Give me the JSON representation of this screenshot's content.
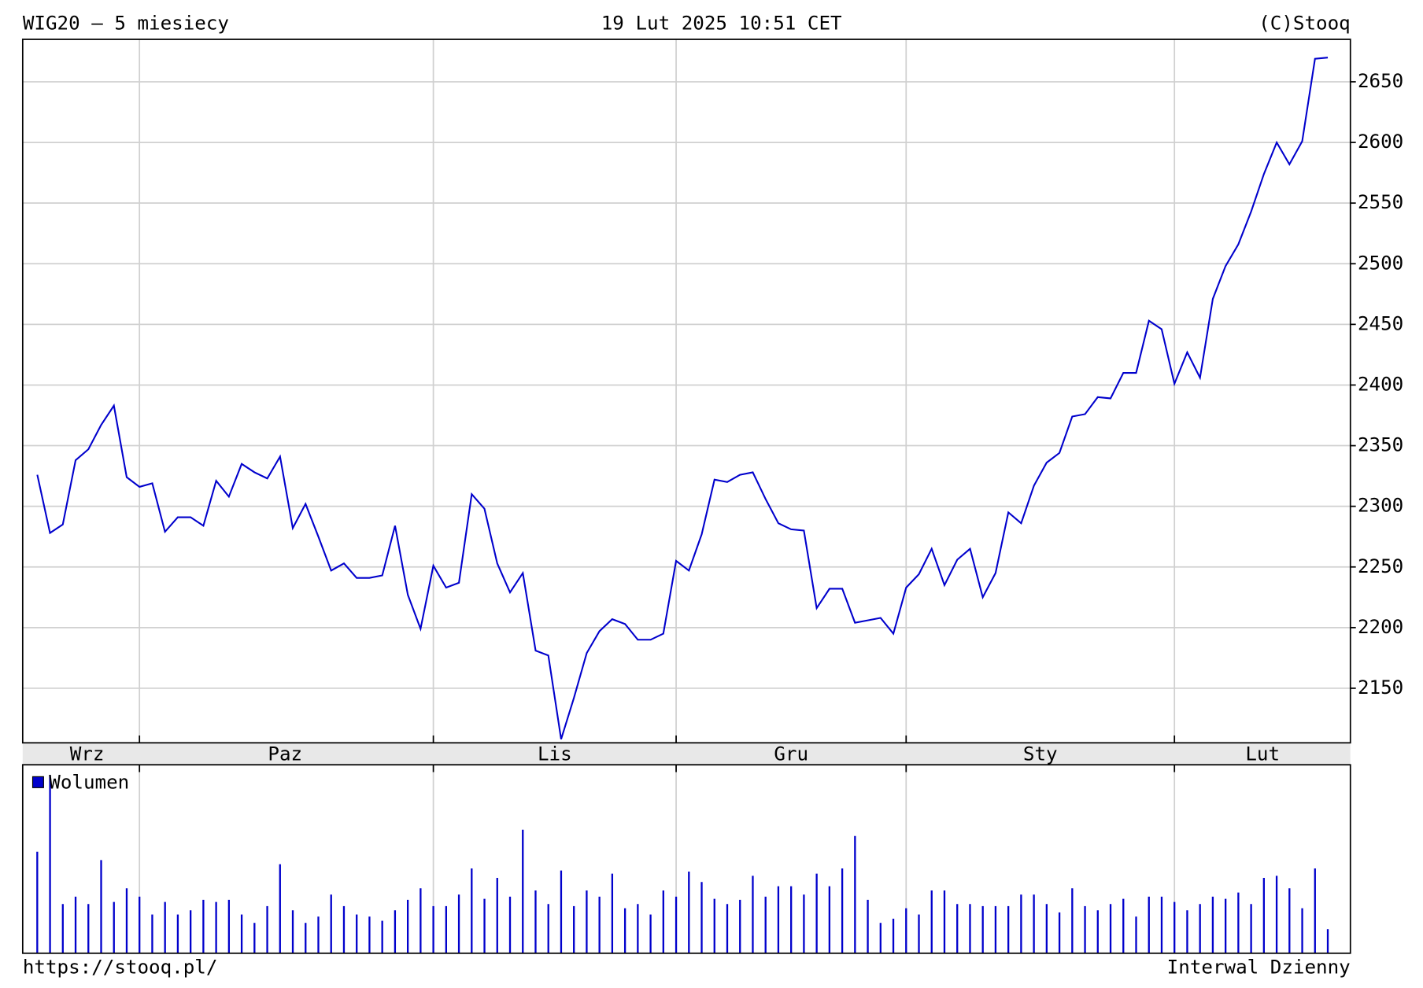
{
  "header": {
    "title": "WIG20 – 5 miesiecy",
    "date": "19 Lut 2025 10:51 CET",
    "copyright": "(C)Stooq"
  },
  "footer": {
    "url": "https://stooq.pl/",
    "interval": "Interwal Dzienny"
  },
  "chart_data": [
    {
      "type": "line",
      "color": "#0000cc",
      "grid": true,
      "xlim": [
        -1.14,
        102.77
      ],
      "xticks": [
        {
          "value": 3.9,
          "label": "Wrz"
        },
        {
          "value": 19.4,
          "label": "Paz"
        },
        {
          "value": 40.5,
          "label": "Lis"
        },
        {
          "value": 59,
          "label": "Gru"
        },
        {
          "value": 78.5,
          "label": "Sty"
        },
        {
          "value": 95.9,
          "label": "Lut"
        }
      ],
      "xgrid": [
        8,
        31,
        50,
        68,
        89
      ],
      "ylim": [
        2105,
        2685
      ],
      "yticks": [
        2150,
        2200,
        2250,
        2300,
        2350,
        2400,
        2450,
        2500,
        2550,
        2600,
        2650
      ],
      "values": [
        2326,
        2278,
        2285,
        2338,
        2347,
        2367,
        2383,
        2324,
        2316,
        2319,
        2279,
        2291,
        2291,
        2284,
        2321,
        2308,
        2335,
        2328,
        2323,
        2341,
        2282,
        2302,
        2275,
        2247,
        2253,
        2241,
        2241,
        2243,
        2284,
        2227,
        2199,
        2251,
        2233,
        2237,
        2310,
        2298,
        2253,
        2229,
        2245,
        2181,
        2177,
        2108,
        2142,
        2179,
        2197,
        2207,
        2203,
        2190,
        2190,
        2195,
        2255,
        2247,
        2277,
        2322,
        2320,
        2326,
        2328,
        2306,
        2286,
        2281,
        2280,
        2216,
        2232,
        2232,
        2204,
        2206,
        2208,
        2195,
        2233,
        2244,
        2265,
        2235,
        2256,
        2265,
        2225,
        2245,
        2295,
        2286,
        2317,
        2336,
        2344,
        2374,
        2376,
        2390,
        2389,
        2410,
        2410,
        2453,
        2446,
        2401,
        2427,
        2406,
        2471,
        2498,
        2516,
        2543,
        2574,
        2600,
        2582,
        2601,
        2669,
        2670
      ]
    },
    {
      "type": "bar",
      "name": "Wolumen",
      "color": "#0000cc",
      "ylim": [
        0,
        180
      ],
      "values": [
        97,
        170,
        47,
        54,
        47,
        89,
        49,
        62,
        54,
        37,
        49,
        37,
        41,
        51,
        49,
        51,
        37,
        29,
        45,
        85,
        41,
        29,
        35,
        56,
        45,
        37,
        35,
        31,
        41,
        51,
        62,
        45,
        45,
        56,
        81,
        52,
        72,
        54,
        118,
        60,
        47,
        79,
        45,
        60,
        54,
        76,
        43,
        47,
        37,
        60,
        54,
        78,
        68,
        52,
        47,
        51,
        74,
        54,
        64,
        64,
        56,
        76,
        64,
        81,
        112,
        51,
        29,
        33,
        43,
        37,
        60,
        60,
        47,
        47,
        45,
        45,
        45,
        56,
        56,
        47,
        39,
        62,
        45,
        41,
        47,
        52,
        35,
        54,
        54,
        49,
        41,
        47,
        54,
        52,
        58,
        47,
        72,
        74,
        62,
        43,
        81,
        23
      ]
    }
  ]
}
